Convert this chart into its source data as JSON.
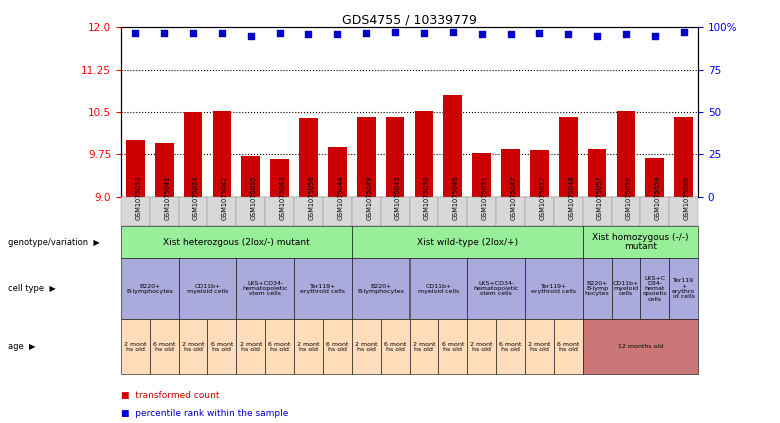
{
  "title": "GDS4755 / 10339779",
  "samples": [
    "GSM1075053",
    "GSM1075041",
    "GSM1075054",
    "GSM1075042",
    "GSM1075055",
    "GSM1075043",
    "GSM1075056",
    "GSM1075044",
    "GSM1075049",
    "GSM1075045",
    "GSM1075050",
    "GSM1075046",
    "GSM1075051",
    "GSM1075047",
    "GSM1075052",
    "GSM1075048",
    "GSM1075057",
    "GSM1075058",
    "GSM1075059",
    "GSM1075060"
  ],
  "bar_values": [
    10.0,
    9.95,
    10.5,
    10.52,
    9.72,
    9.67,
    10.4,
    9.88,
    10.42,
    10.42,
    10.52,
    10.8,
    9.78,
    9.85,
    9.82,
    10.42,
    9.85,
    10.52,
    9.68,
    10.42
  ],
  "percentile_values": [
    11.9,
    11.9,
    11.9,
    11.9,
    11.85,
    11.9,
    11.88,
    11.88,
    11.9,
    11.92,
    11.9,
    11.92,
    11.88,
    11.88,
    11.9,
    11.88,
    11.85,
    11.88,
    11.85,
    11.92
  ],
  "y_min": 9.0,
  "y_max": 12.0,
  "y_ticks_left": [
    9.0,
    9.75,
    10.5,
    11.25,
    12.0
  ],
  "y_ticks_right": [
    0,
    25,
    50,
    75,
    100
  ],
  "hlines": [
    9.75,
    10.5,
    11.25
  ],
  "bar_color": "#cc0000",
  "dot_color": "#0000cc",
  "genotype_groups": [
    {
      "label": "Xist heterozgous (2lox/-) mutant",
      "start": 0,
      "end": 8,
      "color": "#99ee99"
    },
    {
      "label": "Xist wild-type (2lox/+)",
      "start": 8,
      "end": 16,
      "color": "#99ee99"
    },
    {
      "label": "Xist homozygous (-/-)\nmutant",
      "start": 16,
      "end": 20,
      "color": "#99ee99"
    }
  ],
  "cell_type_groups": [
    {
      "label": "B220+\nB-lymphocytes",
      "start": 0,
      "end": 2,
      "color": "#aaaadd"
    },
    {
      "label": "CD11b+\nmyeloid cells",
      "start": 2,
      "end": 4,
      "color": "#aaaadd"
    },
    {
      "label": "LKS+CD34-\nhematopoietic\nstem cells",
      "start": 4,
      "end": 6,
      "color": "#aaaadd"
    },
    {
      "label": "Ter119+\nerythroid cells",
      "start": 6,
      "end": 8,
      "color": "#aaaadd"
    },
    {
      "label": "B220+\nB-lymphocytes",
      "start": 8,
      "end": 10,
      "color": "#aaaadd"
    },
    {
      "label": "CD11b+\nmyeloid cells",
      "start": 10,
      "end": 12,
      "color": "#aaaadd"
    },
    {
      "label": "LKS+CD34-\nhematopoietic\nstem cells",
      "start": 12,
      "end": 14,
      "color": "#aaaadd"
    },
    {
      "label": "Ter119+\nerythroid cells",
      "start": 14,
      "end": 16,
      "color": "#aaaadd"
    },
    {
      "label": "B220+\nB-lymp\nhocytes",
      "start": 16,
      "end": 17,
      "color": "#aaaadd"
    },
    {
      "label": "CD11b+\nmyeloid\ncells",
      "start": 17,
      "end": 18,
      "color": "#aaaadd"
    },
    {
      "label": "LKS+C\nD34-\nhemat\nopoietic\ncells",
      "start": 18,
      "end": 19,
      "color": "#aaaadd"
    },
    {
      "label": "Ter119\n+\nerythro\nid cells",
      "start": 19,
      "end": 20,
      "color": "#aaaadd"
    }
  ],
  "age_groups": [
    {
      "label": "2 mont\nhs old",
      "start": 0,
      "end": 1,
      "color": "#ffddbb"
    },
    {
      "label": "6 mont\nhs old",
      "start": 1,
      "end": 2,
      "color": "#ffddbb"
    },
    {
      "label": "2 mont\nhs old",
      "start": 2,
      "end": 3,
      "color": "#ffddbb"
    },
    {
      "label": "6 mont\nhs old",
      "start": 3,
      "end": 4,
      "color": "#ffddbb"
    },
    {
      "label": "2 mont\nhs old",
      "start": 4,
      "end": 5,
      "color": "#ffddbb"
    },
    {
      "label": "6 mont\nhs old",
      "start": 5,
      "end": 6,
      "color": "#ffddbb"
    },
    {
      "label": "2 mont\nhs old",
      "start": 6,
      "end": 7,
      "color": "#ffddbb"
    },
    {
      "label": "6 mont\nhs old",
      "start": 7,
      "end": 8,
      "color": "#ffddbb"
    },
    {
      "label": "2 mont\nhs old",
      "start": 8,
      "end": 9,
      "color": "#ffddbb"
    },
    {
      "label": "6 mont\nhs old",
      "start": 9,
      "end": 10,
      "color": "#ffddbb"
    },
    {
      "label": "2 mont\nhs old",
      "start": 10,
      "end": 11,
      "color": "#ffddbb"
    },
    {
      "label": "6 mont\nhs old",
      "start": 11,
      "end": 12,
      "color": "#ffddbb"
    },
    {
      "label": "2 mont\nhs old",
      "start": 12,
      "end": 13,
      "color": "#ffddbb"
    },
    {
      "label": "6 mont\nhs old",
      "start": 13,
      "end": 14,
      "color": "#ffddbb"
    },
    {
      "label": "2 mont\nhs old",
      "start": 14,
      "end": 15,
      "color": "#ffddbb"
    },
    {
      "label": "6 mont\nhs old",
      "start": 15,
      "end": 16,
      "color": "#ffddbb"
    },
    {
      "label": "12 months old",
      "start": 16,
      "end": 20,
      "color": "#cc7777"
    }
  ],
  "legend_items": [
    {
      "color": "#cc0000",
      "label": "transformed count"
    },
    {
      "color": "#0000cc",
      "label": "percentile rank within the sample"
    }
  ]
}
